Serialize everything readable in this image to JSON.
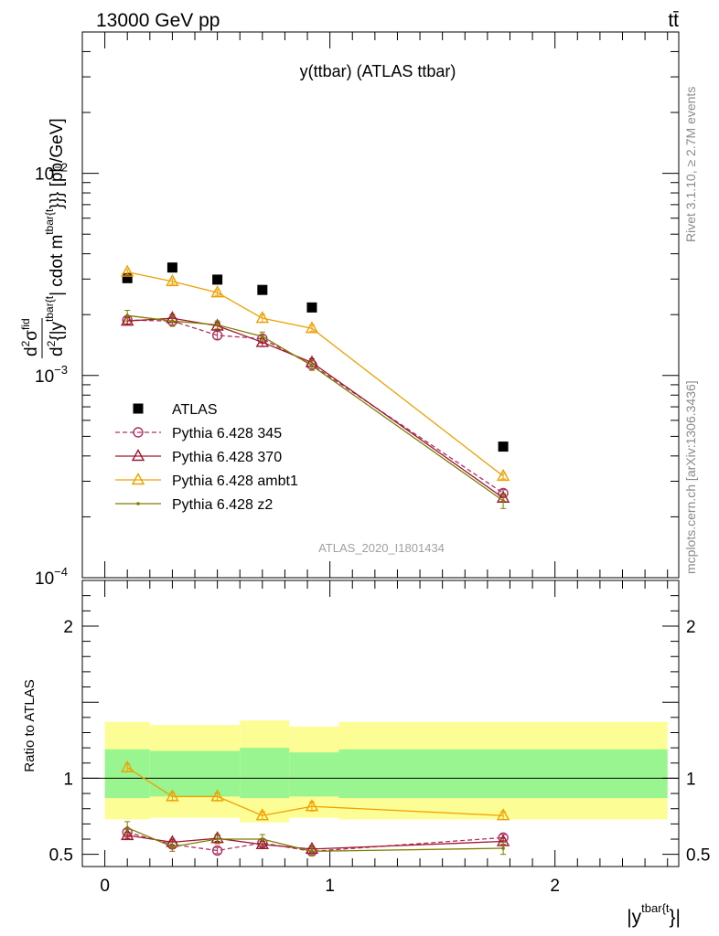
{
  "header": {
    "left": "13000 GeV pp",
    "right": "tt̄"
  },
  "side_labels": {
    "rivet": "Rivet 3.1.10, ≥ 2.7M events",
    "mcplots": "mcplots.cern.ch [arXiv:1306.3436]"
  },
  "chart_data": [
    {
      "type": "scatter",
      "panel": "main",
      "title": "y(ttbar) (ATLAS ttbar)",
      "watermark": "ATLAS_2020_I1801434",
      "ylabel": "d²σ^fid / d² {|y^tbar{t|} cdot m^tbar{t}}} [pb/GeV]",
      "ylabel_parts": {
        "d": "d",
        "sup2": "2",
        "sigma": "σ",
        "fid": "fid",
        "den": "d",
        "den2": "2",
        "den_rest": "{|y",
        "den_sup": "tbar{t",
        "den_tail": "| cdot m",
        "den_sup2": "tbar{t",
        "den_end": "}}} [pb/GeV]"
      },
      "yscale": "log",
      "ylim": [
        0.0001,
        0.05
      ],
      "xlim": [
        -0.1,
        2.55
      ],
      "ytick_labels": [
        {
          "value": 0.01,
          "base": "10",
          "exp": "−2"
        },
        {
          "value": 0.001,
          "base": "10",
          "exp": "−3"
        },
        {
          "value": 0.0001,
          "base": "10",
          "exp": "−4"
        }
      ],
      "legend": "left-middle",
      "x": [
        0.1,
        0.3,
        0.5,
        0.7,
        0.92,
        1.77
      ],
      "series": [
        {
          "name": "ATLAS",
          "color": "#000000",
          "marker": "square",
          "line": "none",
          "values": [
            0.00303,
            0.00342,
            0.00298,
            0.00265,
            0.00217,
            0.000445
          ]
        },
        {
          "name": "Pythia 6.428 345",
          "color": "#b03060",
          "marker": "circle-open",
          "line": "dashed",
          "values": [
            0.00188,
            0.00186,
            0.00158,
            0.00152,
            0.00113,
            0.000262
          ],
          "errors": [
            8e-05,
            8e-05,
            7e-05,
            7e-05,
            5e-05,
            1e-05
          ]
        },
        {
          "name": "Pythia 6.428 370",
          "color": "#a01830",
          "marker": "triangle-open",
          "line": "solid",
          "values": [
            0.00186,
            0.00192,
            0.00176,
            0.00146,
            0.00116,
            0.000248
          ],
          "errors": [
            8e-05,
            8e-05,
            7e-05,
            7e-05,
            5e-05,
            1e-05
          ]
        },
        {
          "name": "Pythia 6.428 ambt1",
          "color": "#f0a000",
          "marker": "triangle-open",
          "line": "solid",
          "values": [
            0.00325,
            0.00292,
            0.00257,
            0.00192,
            0.00171,
            0.000318
          ],
          "errors": [
            9e-05,
            9e-05,
            8e-05,
            8e-05,
            6e-05,
            1e-05
          ]
        },
        {
          "name": "Pythia 6.428 z2",
          "color": "#7d7d00",
          "marker": "dot",
          "line": "solid",
          "values": [
            0.00198,
            0.00186,
            0.00178,
            0.00156,
            0.00112,
            0.00024
          ],
          "errors": [
            0.00012,
            0.00011,
            8e-05,
            8e-05,
            6e-05,
            2e-05
          ]
        }
      ]
    },
    {
      "type": "scatter",
      "panel": "ratio",
      "ylabel": "Ratio to ATLAS",
      "xlabel_parts": {
        "pre": "|y",
        "sup": "tbar{t",
        "post": "}|"
      },
      "ylim": [
        0.42,
        2.3
      ],
      "xlim": [
        -0.1,
        2.55
      ],
      "yticks": [
        0.5,
        1,
        2
      ],
      "ytick_labels": [
        "0.5",
        "1",
        "2"
      ],
      "xticks": [
        0,
        1,
        2
      ],
      "xtick_labels": [
        "0",
        "1",
        "2"
      ],
      "bands": [
        {
          "x0": 0.0,
          "x1": 0.2,
          "green": [
            0.87,
            1.19
          ],
          "yellow": [
            0.73,
            1.37
          ]
        },
        {
          "x0": 0.2,
          "x1": 0.6,
          "green": [
            0.88,
            1.18
          ],
          "yellow": [
            0.74,
            1.35
          ]
        },
        {
          "x0": 0.6,
          "x1": 0.82,
          "green": [
            0.87,
            1.2
          ],
          "yellow": [
            0.71,
            1.38
          ]
        },
        {
          "x0": 0.82,
          "x1": 1.04,
          "green": [
            0.88,
            1.17
          ],
          "yellow": [
            0.74,
            1.34
          ]
        },
        {
          "x0": 1.04,
          "x1": 2.5,
          "green": [
            0.87,
            1.19
          ],
          "yellow": [
            0.73,
            1.37
          ]
        }
      ],
      "band_colors": {
        "green": "#99f58f",
        "yellow": "#fdfd96"
      },
      "x": [
        0.1,
        0.3,
        0.5,
        0.7,
        0.92,
        1.77
      ],
      "series": [
        {
          "name": "Pythia 6.428 345",
          "color": "#b03060",
          "marker": "circle-open",
          "line": "dashed",
          "values": [
            0.645,
            0.565,
            0.525,
            0.575,
            0.52,
            0.61
          ],
          "errors": [
            0.02,
            0.02,
            0.02,
            0.02,
            0.02,
            0.02
          ]
        },
        {
          "name": "Pythia 6.428 370",
          "color": "#a01830",
          "marker": "triangle-open",
          "line": "solid",
          "values": [
            0.625,
            0.58,
            0.605,
            0.565,
            0.535,
            0.585
          ],
          "errors": [
            0.02,
            0.02,
            0.02,
            0.02,
            0.02,
            0.02
          ]
        },
        {
          "name": "Pythia 6.428 ambt1",
          "color": "#f0a000",
          "marker": "triangle-open",
          "line": "solid",
          "values": [
            1.07,
            0.88,
            0.88,
            0.755,
            0.815,
            0.755
          ],
          "errors": [
            0.025,
            0.025,
            0.025,
            0.025,
            0.03,
            0.025
          ]
        },
        {
          "name": "Pythia 6.428 z2",
          "color": "#7d7d00",
          "marker": "dot",
          "line": "solid",
          "values": [
            0.675,
            0.55,
            0.6,
            0.6,
            0.52,
            0.54
          ],
          "errors": [
            0.04,
            0.03,
            0.03,
            0.03,
            0.03,
            0.04
          ]
        }
      ]
    }
  ]
}
